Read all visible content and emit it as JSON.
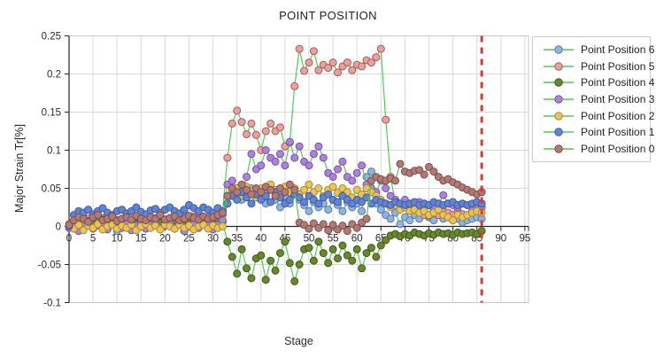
{
  "title": "POINT POSITION",
  "chart_data": {
    "type": "line",
    "title": "POINT POSITION",
    "xlabel": "Stage",
    "ylabel": "Major Strain Tr[%]",
    "xlim": [
      0,
      95
    ],
    "ylim": [
      -0.1,
      0.25
    ],
    "grid": true,
    "legend_position": "right",
    "line_color": "#55c957",
    "x_ticks": [
      0,
      5,
      10,
      15,
      20,
      25,
      30,
      35,
      40,
      45,
      50,
      55,
      60,
      65,
      70,
      75,
      80,
      85,
      90,
      95
    ],
    "y_tick_values": [
      0.25,
      0.2,
      0.15,
      0.1,
      0.05,
      0,
      -0.05,
      -0.1
    ],
    "y_tick_labels": [
      "0.25",
      "0.2",
      "0.15",
      "0.1",
      "0.05",
      "0",
      "-0.05",
      "-0.1"
    ],
    "x_start": 0,
    "x_step": 1,
    "annotation_vline": {
      "x": 86,
      "color": "#e8332a",
      "style": "dashed"
    },
    "series": [
      {
        "name": "Point Position 6",
        "fill": "#8eb4e3",
        "stroke": "#5a7aa8",
        "values": [
          0.002,
          0.006,
          0.01,
          0.005,
          0.008,
          0.012,
          0.006,
          0.009,
          0.004,
          0.008,
          -0.006,
          0.005,
          0.009,
          0.006,
          0.01,
          0.007,
          0.004,
          0.008,
          0.011,
          0.006,
          0.009,
          0.005,
          0.008,
          0.012,
          0.007,
          0.01,
          0.006,
          0.009,
          0.012,
          0.008,
          0.005,
          0.01,
          0.015,
          0.03,
          0.04,
          0.048,
          0.035,
          0.042,
          0.05,
          0.038,
          0.045,
          0.03,
          0.048,
          0.035,
          0.025,
          0.04,
          0.03,
          0.045,
          0.035,
          0.028,
          0.02,
          0.032,
          0.025,
          0.03,
          0.022,
          0.035,
          0.028,
          0.02,
          0.032,
          0.025,
          0.03,
          0.02,
          0.065,
          0.072,
          0.03,
          0.022,
          0.015,
          0.01,
          0.018,
          0.003,
          0.012,
          0.008,
          0.015,
          0.01,
          0.018,
          0.012,
          0.008,
          0.015,
          0.01,
          0.012,
          0.008,
          0.01,
          0.005,
          0.008,
          0.01,
          0.012,
          0.01
        ]
      },
      {
        "name": "Point Position 5",
        "fill": "#e6a39e",
        "stroke": "#aa5753",
        "values": [
          0.003,
          0.008,
          0.012,
          0.007,
          0.01,
          0.013,
          0.008,
          0.011,
          0.009,
          0.013,
          0.007,
          0.01,
          0.012,
          0.008,
          0.011,
          0.014,
          0.009,
          0.012,
          0.01,
          0.013,
          0.008,
          0.011,
          0.014,
          0.01,
          0.012,
          0.009,
          0.013,
          0.011,
          0.008,
          0.012,
          0.01,
          0.014,
          0.02,
          0.09,
          0.135,
          0.152,
          0.137,
          0.121,
          0.135,
          0.12,
          0.1,
          0.125,
          0.135,
          0.125,
          0.13,
          0.105,
          0.11,
          0.184,
          0.233,
          0.204,
          0.215,
          0.23,
          0.205,
          0.212,
          0.208,
          0.215,
          0.202,
          0.21,
          0.215,
          0.205,
          0.212,
          0.21,
          0.218,
          0.215,
          0.222,
          0.233,
          0.14,
          0.065,
          0.03,
          0.025,
          0.03,
          0.02,
          0.025,
          0.02,
          0.015,
          0.014,
          0.02,
          0.015,
          0.02,
          0.018,
          0.015,
          0.02,
          0.016,
          0.015,
          0.02,
          0.025,
          0.03
        ]
      },
      {
        "name": "Point Position 4",
        "fill": "#69882b",
        "stroke": "#40581a",
        "values": [
          0.001,
          0.005,
          0.008,
          0.004,
          0.007,
          0.003,
          0.006,
          0.009,
          0.004,
          0.006,
          0.008,
          0.003,
          0.005,
          0.007,
          0.004,
          0.008,
          0.005,
          0.003,
          0.007,
          0.005,
          0.008,
          0.004,
          0.006,
          0.003,
          0.007,
          0.005,
          0.008,
          0.006,
          0.004,
          0.007,
          0.005,
          0.008,
          0.006,
          -0.02,
          -0.04,
          -0.062,
          -0.03,
          -0.055,
          -0.068,
          -0.042,
          -0.038,
          -0.07,
          -0.045,
          -0.058,
          -0.035,
          -0.02,
          -0.048,
          -0.072,
          -0.05,
          -0.03,
          -0.028,
          -0.045,
          -0.02,
          -0.035,
          -0.048,
          -0.03,
          -0.042,
          -0.025,
          -0.038,
          -0.045,
          -0.03,
          -0.055,
          -0.035,
          -0.028,
          -0.04,
          -0.025,
          -0.018,
          -0.012,
          -0.01,
          -0.013,
          -0.01,
          -0.012,
          -0.008,
          -0.01,
          -0.012,
          -0.009,
          -0.011,
          -0.008,
          -0.01,
          -0.009,
          -0.011,
          -0.008,
          -0.01,
          -0.009,
          -0.008,
          -0.01,
          -0.006
        ]
      },
      {
        "name": "Point Position 3",
        "fill": "#ab82dd",
        "stroke": "#7753a3",
        "values": [
          -0.002,
          0.004,
          -0.006,
          0.002,
          0.006,
          -0.003,
          0.001,
          0.005,
          -0.004,
          0.002,
          0.007,
          -0.002,
          0.003,
          -0.005,
          0.001,
          0.004,
          -0.003,
          0.002,
          0.006,
          -0.002,
          0.001,
          0.005,
          -0.003,
          0.002,
          -0.006,
          0.001,
          0.004,
          -0.002,
          0.003,
          0.006,
          -0.004,
          0.002,
          0.008,
          0.055,
          0.06,
          0.05,
          0.04,
          0.065,
          0.095,
          0.075,
          0.08,
          0.1,
          0.09,
          0.085,
          0.095,
          0.08,
          0.111,
          0.09,
          0.105,
          0.085,
          0.08,
          0.095,
          0.105,
          0.09,
          0.07,
          0.065,
          0.075,
          0.085,
          0.065,
          0.06,
          0.07,
          0.08,
          0.055,
          0.05,
          0.045,
          0.06,
          0.05,
          0.04,
          0.035,
          0.03,
          0.035,
          0.03,
          0.028,
          0.032,
          0.03,
          0.028,
          0.025,
          0.03,
          0.041,
          0.03,
          0.028,
          0.025,
          0.03,
          0.028,
          0.025,
          0.028,
          0.025
        ]
      },
      {
        "name": "Point Position 2",
        "fill": "#e9c459",
        "stroke": "#a8892f",
        "values": [
          0.0,
          -0.003,
          0.002,
          -0.005,
          0.001,
          -0.002,
          0.003,
          -0.004,
          0.0,
          0.002,
          -0.003,
          0.001,
          -0.002,
          0.002,
          -0.005,
          0.0,
          0.003,
          -0.002,
          0.001,
          -0.004,
          0.002,
          0.0,
          -0.003,
          0.002,
          -0.002,
          0.001,
          -0.004,
          0.0,
          0.002,
          -0.003,
          0.001,
          -0.002,
          0.0,
          0.03,
          0.045,
          0.05,
          0.04,
          0.052,
          0.045,
          0.038,
          0.05,
          0.042,
          0.055,
          0.048,
          0.04,
          0.052,
          0.045,
          0.05,
          0.042,
          0.048,
          0.055,
          0.045,
          0.05,
          0.04,
          0.048,
          0.052,
          0.044,
          0.05,
          0.045,
          0.038,
          0.048,
          0.042,
          0.05,
          0.045,
          0.04,
          0.035,
          0.03,
          0.025,
          0.028,
          0.022,
          0.025,
          0.02,
          0.022,
          0.018,
          0.02,
          0.015,
          0.018,
          0.022,
          0.015,
          0.012,
          0.008,
          0.015,
          0.012,
          0.015,
          0.018,
          0.02,
          0.018
        ]
      },
      {
        "name": "Point Position 1",
        "fill": "#6183d3",
        "stroke": "#3e5c9e",
        "values": [
          0.0,
          0.015,
          0.02,
          0.018,
          0.022,
          0.016,
          0.02,
          0.024,
          0.018,
          0.015,
          0.02,
          0.022,
          0.017,
          0.02,
          0.025,
          0.019,
          0.016,
          0.021,
          0.023,
          0.018,
          0.022,
          0.025,
          0.02,
          0.017,
          0.022,
          0.028,
          0.024,
          0.02,
          0.025,
          0.022,
          0.018,
          0.024,
          0.02,
          0.03,
          0.04,
          0.035,
          0.045,
          0.038,
          0.03,
          0.042,
          0.035,
          0.04,
          0.032,
          0.045,
          0.038,
          0.03,
          0.035,
          0.042,
          0.038,
          0.032,
          0.04,
          0.035,
          0.03,
          0.038,
          0.042,
          0.035,
          0.032,
          0.04,
          0.035,
          0.03,
          0.035,
          0.032,
          0.038,
          0.03,
          0.035,
          0.032,
          0.03,
          0.028,
          0.032,
          0.03,
          0.028,
          0.03,
          0.032,
          0.028,
          0.03,
          0.028,
          0.032,
          0.03,
          0.028,
          0.03,
          0.032,
          0.028,
          0.03,
          0.028,
          0.03,
          0.032,
          0.03
        ]
      },
      {
        "name": "Point Position 0",
        "fill": "#b37a75",
        "stroke": "#7d4d49",
        "values": [
          0.002,
          0.008,
          0.012,
          0.01,
          0.006,
          0.012,
          0.015,
          0.008,
          0.01,
          0.013,
          0.007,
          0.01,
          0.012,
          0.009,
          0.014,
          0.01,
          0.008,
          0.012,
          0.01,
          0.015,
          0.009,
          0.011,
          0.013,
          0.008,
          0.01,
          0.014,
          0.011,
          0.009,
          0.013,
          0.01,
          0.012,
          0.015,
          0.018,
          0.04,
          0.05,
          0.045,
          0.055,
          0.048,
          0.042,
          0.05,
          0.045,
          0.052,
          0.048,
          0.04,
          0.05,
          0.045,
          0.055,
          0.048,
          0.005,
          0.002,
          -0.003,
          0.004,
          -0.002,
          0.003,
          -0.005,
          0.002,
          -0.004,
          0.001,
          -0.006,
          0.003,
          -0.002,
          0.005,
          0.01,
          0.06,
          0.065,
          0.062,
          0.06,
          0.063,
          0.06,
          0.082,
          0.072,
          0.07,
          0.073,
          0.074,
          0.068,
          0.078,
          0.072,
          0.065,
          0.06,
          0.062,
          0.058,
          0.055,
          0.051,
          0.048,
          0.045,
          0.042,
          0.045
        ]
      }
    ]
  }
}
